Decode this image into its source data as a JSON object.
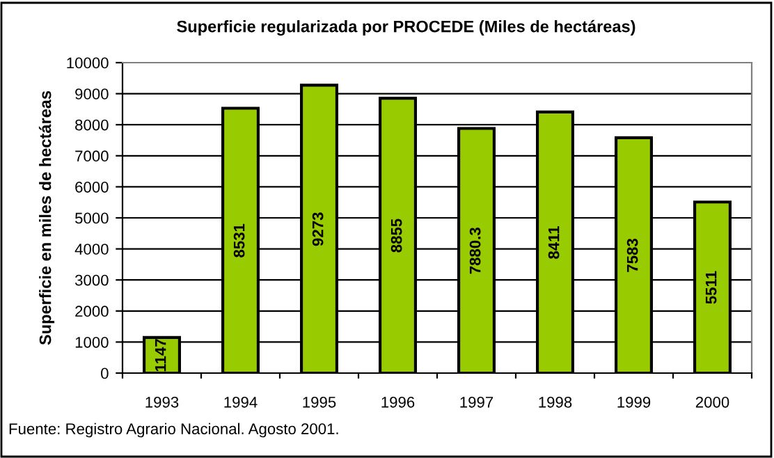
{
  "chart_data": {
    "type": "bar",
    "title": "Superficie regularizada por PROCEDE (Miles de hectáreas)",
    "ylabel": "Superficie en miles de hectáreas",
    "categories": [
      "1993",
      "1994",
      "1995",
      "1996",
      "1997",
      "1998",
      "1999",
      "2000"
    ],
    "values": [
      1147,
      8531,
      9273,
      8855,
      7880.3,
      8411,
      7583,
      5511
    ],
    "color": "#99cc00",
    "data_labels": true,
    "grid": "y",
    "ylim": [
      0,
      10000
    ],
    "yticks": [
      0,
      1000,
      2000,
      3000,
      4000,
      5000,
      6000,
      7000,
      8000,
      9000,
      10000
    ],
    "annotations": [
      "Fuente: Registro Agrario Nacional. Agosto 2001."
    ]
  }
}
